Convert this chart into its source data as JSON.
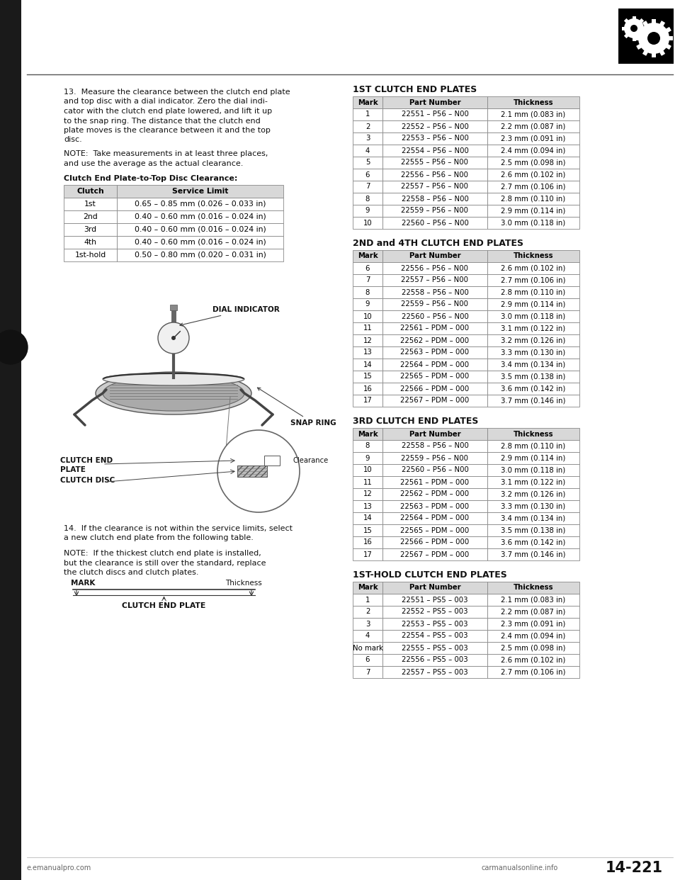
{
  "page_num": "14-221",
  "website_left": "e.emanualpro.com",
  "website_bottom": "carmanualsonline.info",
  "step13_text_lines": [
    "13.  Measure the clearance between the clutch end plate",
    "and top disc with a dial indicator. Zero the dial indi-",
    "cator with the clutch end plate lowered, and lift it up",
    "to the snap ring. The distance that the clutch end",
    "plate moves is the clearance between it and the top",
    "disc."
  ],
  "note_text_lines": [
    "NOTE:  Take measurements in at least three places,",
    "and use the average as the actual clearance."
  ],
  "clearance_table_title": "Clutch End Plate-to-Top Disc Clearance:",
  "clearance_table_headers": [
    "Clutch",
    "Service Limit"
  ],
  "clearance_table_data": [
    [
      "1st",
      "0.65 – 0.85 mm (0.026 – 0.033 in)"
    ],
    [
      "2nd",
      "0.40 – 0.60 mm (0.016 – 0.024 in)"
    ],
    [
      "3rd",
      "0.40 – 0.60 mm (0.016 – 0.024 in)"
    ],
    [
      "4th",
      "0.40 – 0.60 mm (0.016 – 0.024 in)"
    ],
    [
      "1st-hold",
      "0.50 – 0.80 mm (0.020 – 0.031 in)"
    ]
  ],
  "step14_text_lines": [
    "14.  If the clearance is not within the service limits, select",
    "a new clutch end plate from the following table."
  ],
  "note2_text_lines": [
    "NOTE:  If the thickest clutch end plate is installed,",
    "but the clearance is still over the standard, replace",
    "the clutch discs and clutch plates."
  ],
  "mark_label": "MARK",
  "thickness_label": "Thickness",
  "clutch_end_plate_label": "CLUTCH END PLATE",
  "dial_indicator_label": "DIAL INDICATOR",
  "snap_ring_label": "SNAP RING",
  "clutch_end_plate_diagram_label1": "CLUTCH END",
  "clutch_end_plate_diagram_label2": "PLATE",
  "clutch_disc_label": "CLUTCH DISC",
  "clearance_label": "Clearance",
  "table1_title": "1ST CLUTCH END PLATES",
  "table1_headers": [
    "Mark",
    "Part Number",
    "Thickness"
  ],
  "table1_data": [
    [
      "1",
      "22551 – P56 – N00",
      "2.1 mm (0.083 in)"
    ],
    [
      "2",
      "22552 – P56 – N00",
      "2.2 mm (0.087 in)"
    ],
    [
      "3",
      "22553 – P56 – N00",
      "2.3 mm (0.091 in)"
    ],
    [
      "4",
      "22554 – P56 – N00",
      "2.4 mm (0.094 in)"
    ],
    [
      "5",
      "22555 – P56 – N00",
      "2.5 mm (0.098 in)"
    ],
    [
      "6",
      "22556 – P56 – N00",
      "2.6 mm (0.102 in)"
    ],
    [
      "7",
      "22557 – P56 – N00",
      "2.7 mm (0.106 in)"
    ],
    [
      "8",
      "22558 – P56 – N00",
      "2.8 mm (0.110 in)"
    ],
    [
      "9",
      "22559 – P56 – N00",
      "2.9 mm (0.114 in)"
    ],
    [
      "10",
      "22560 – P56 – N00",
      "3.0 mm (0.118 in)"
    ]
  ],
  "table2_title": "2ND and 4TH CLUTCH END PLATES",
  "table2_headers": [
    "Mark",
    "Part Number",
    "Thickness"
  ],
  "table2_data": [
    [
      "6",
      "22556 – P56 – N00",
      "2.6 mm (0.102 in)"
    ],
    [
      "7",
      "22557 – P56 – N00",
      "2.7 mm (0.106 in)"
    ],
    [
      "8",
      "22558 – P56 – N00",
      "2.8 mm (0.110 in)"
    ],
    [
      "9",
      "22559 – P56 – N00",
      "2.9 mm (0.114 in)"
    ],
    [
      "10",
      "22560 – P56 – N00",
      "3.0 mm (0.118 in)"
    ],
    [
      "11",
      "22561 – PDM – 000",
      "3.1 mm (0.122 in)"
    ],
    [
      "12",
      "22562 – PDM – 000",
      "3.2 mm (0.126 in)"
    ],
    [
      "13",
      "22563 – PDM – 000",
      "3.3 mm (0.130 in)"
    ],
    [
      "14",
      "22564 – PDM – 000",
      "3.4 mm (0.134 in)"
    ],
    [
      "15",
      "22565 – PDM – 000",
      "3.5 mm (0.138 in)"
    ],
    [
      "16",
      "22566 – PDM – 000",
      "3.6 mm (0.142 in)"
    ],
    [
      "17",
      "22567 – PDM – 000",
      "3.7 mm (0.146 in)"
    ]
  ],
  "table3_title": "3RD CLUTCH END PLATES",
  "table3_headers": [
    "Mark",
    "Part Number",
    "Thickness"
  ],
  "table3_data": [
    [
      "8",
      "22558 – P56 – N00",
      "2.8 mm (0.110 in)"
    ],
    [
      "9",
      "22559 – P56 – N00",
      "2.9 mm (0.114 in)"
    ],
    [
      "10",
      "22560 – P56 – N00",
      "3.0 mm (0.118 in)"
    ],
    [
      "11",
      "22561 – PDM – 000",
      "3.1 mm (0.122 in)"
    ],
    [
      "12",
      "22562 – PDM – 000",
      "3.2 mm (0.126 in)"
    ],
    [
      "13",
      "22563 – PDM – 000",
      "3.3 mm (0.130 in)"
    ],
    [
      "14",
      "22564 – PDM – 000",
      "3.4 mm (0.134 in)"
    ],
    [
      "15",
      "22565 – PDM – 000",
      "3.5 mm (0.138 in)"
    ],
    [
      "16",
      "22566 – PDM – 000",
      "3.6 mm (0.142 in)"
    ],
    [
      "17",
      "22567 – PDM – 000",
      "3.7 mm (0.146 in)"
    ]
  ],
  "table4_title": "1ST-HOLD CLUTCH END PLATES",
  "table4_headers": [
    "Mark",
    "Part Number",
    "Thickness"
  ],
  "table4_data": [
    [
      "1",
      "22551 – PS5 – 003",
      "2.1 mm (0.083 in)"
    ],
    [
      "2",
      "22552 – PS5 – 003",
      "2.2 mm (0.087 in)"
    ],
    [
      "3",
      "22553 – PS5 – 003",
      "2.3 mm (0.091 in)"
    ],
    [
      "4",
      "22554 – PS5 – 003",
      "2.4 mm (0.094 in)"
    ],
    [
      "No mark",
      "22555 – PS5 – 003",
      "2.5 mm (0.098 in)"
    ],
    [
      "6",
      "22556 – PS5 – 003",
      "2.6 mm (0.102 in)"
    ],
    [
      "7",
      "22557 – PS5 – 003",
      "2.7 mm (0.106 in)"
    ]
  ],
  "bg_color": "#ffffff",
  "text_color": "#111111",
  "table_header_bg": "#d8d8d8",
  "table_row_bg": "#ffffff",
  "table_border": "#888888"
}
